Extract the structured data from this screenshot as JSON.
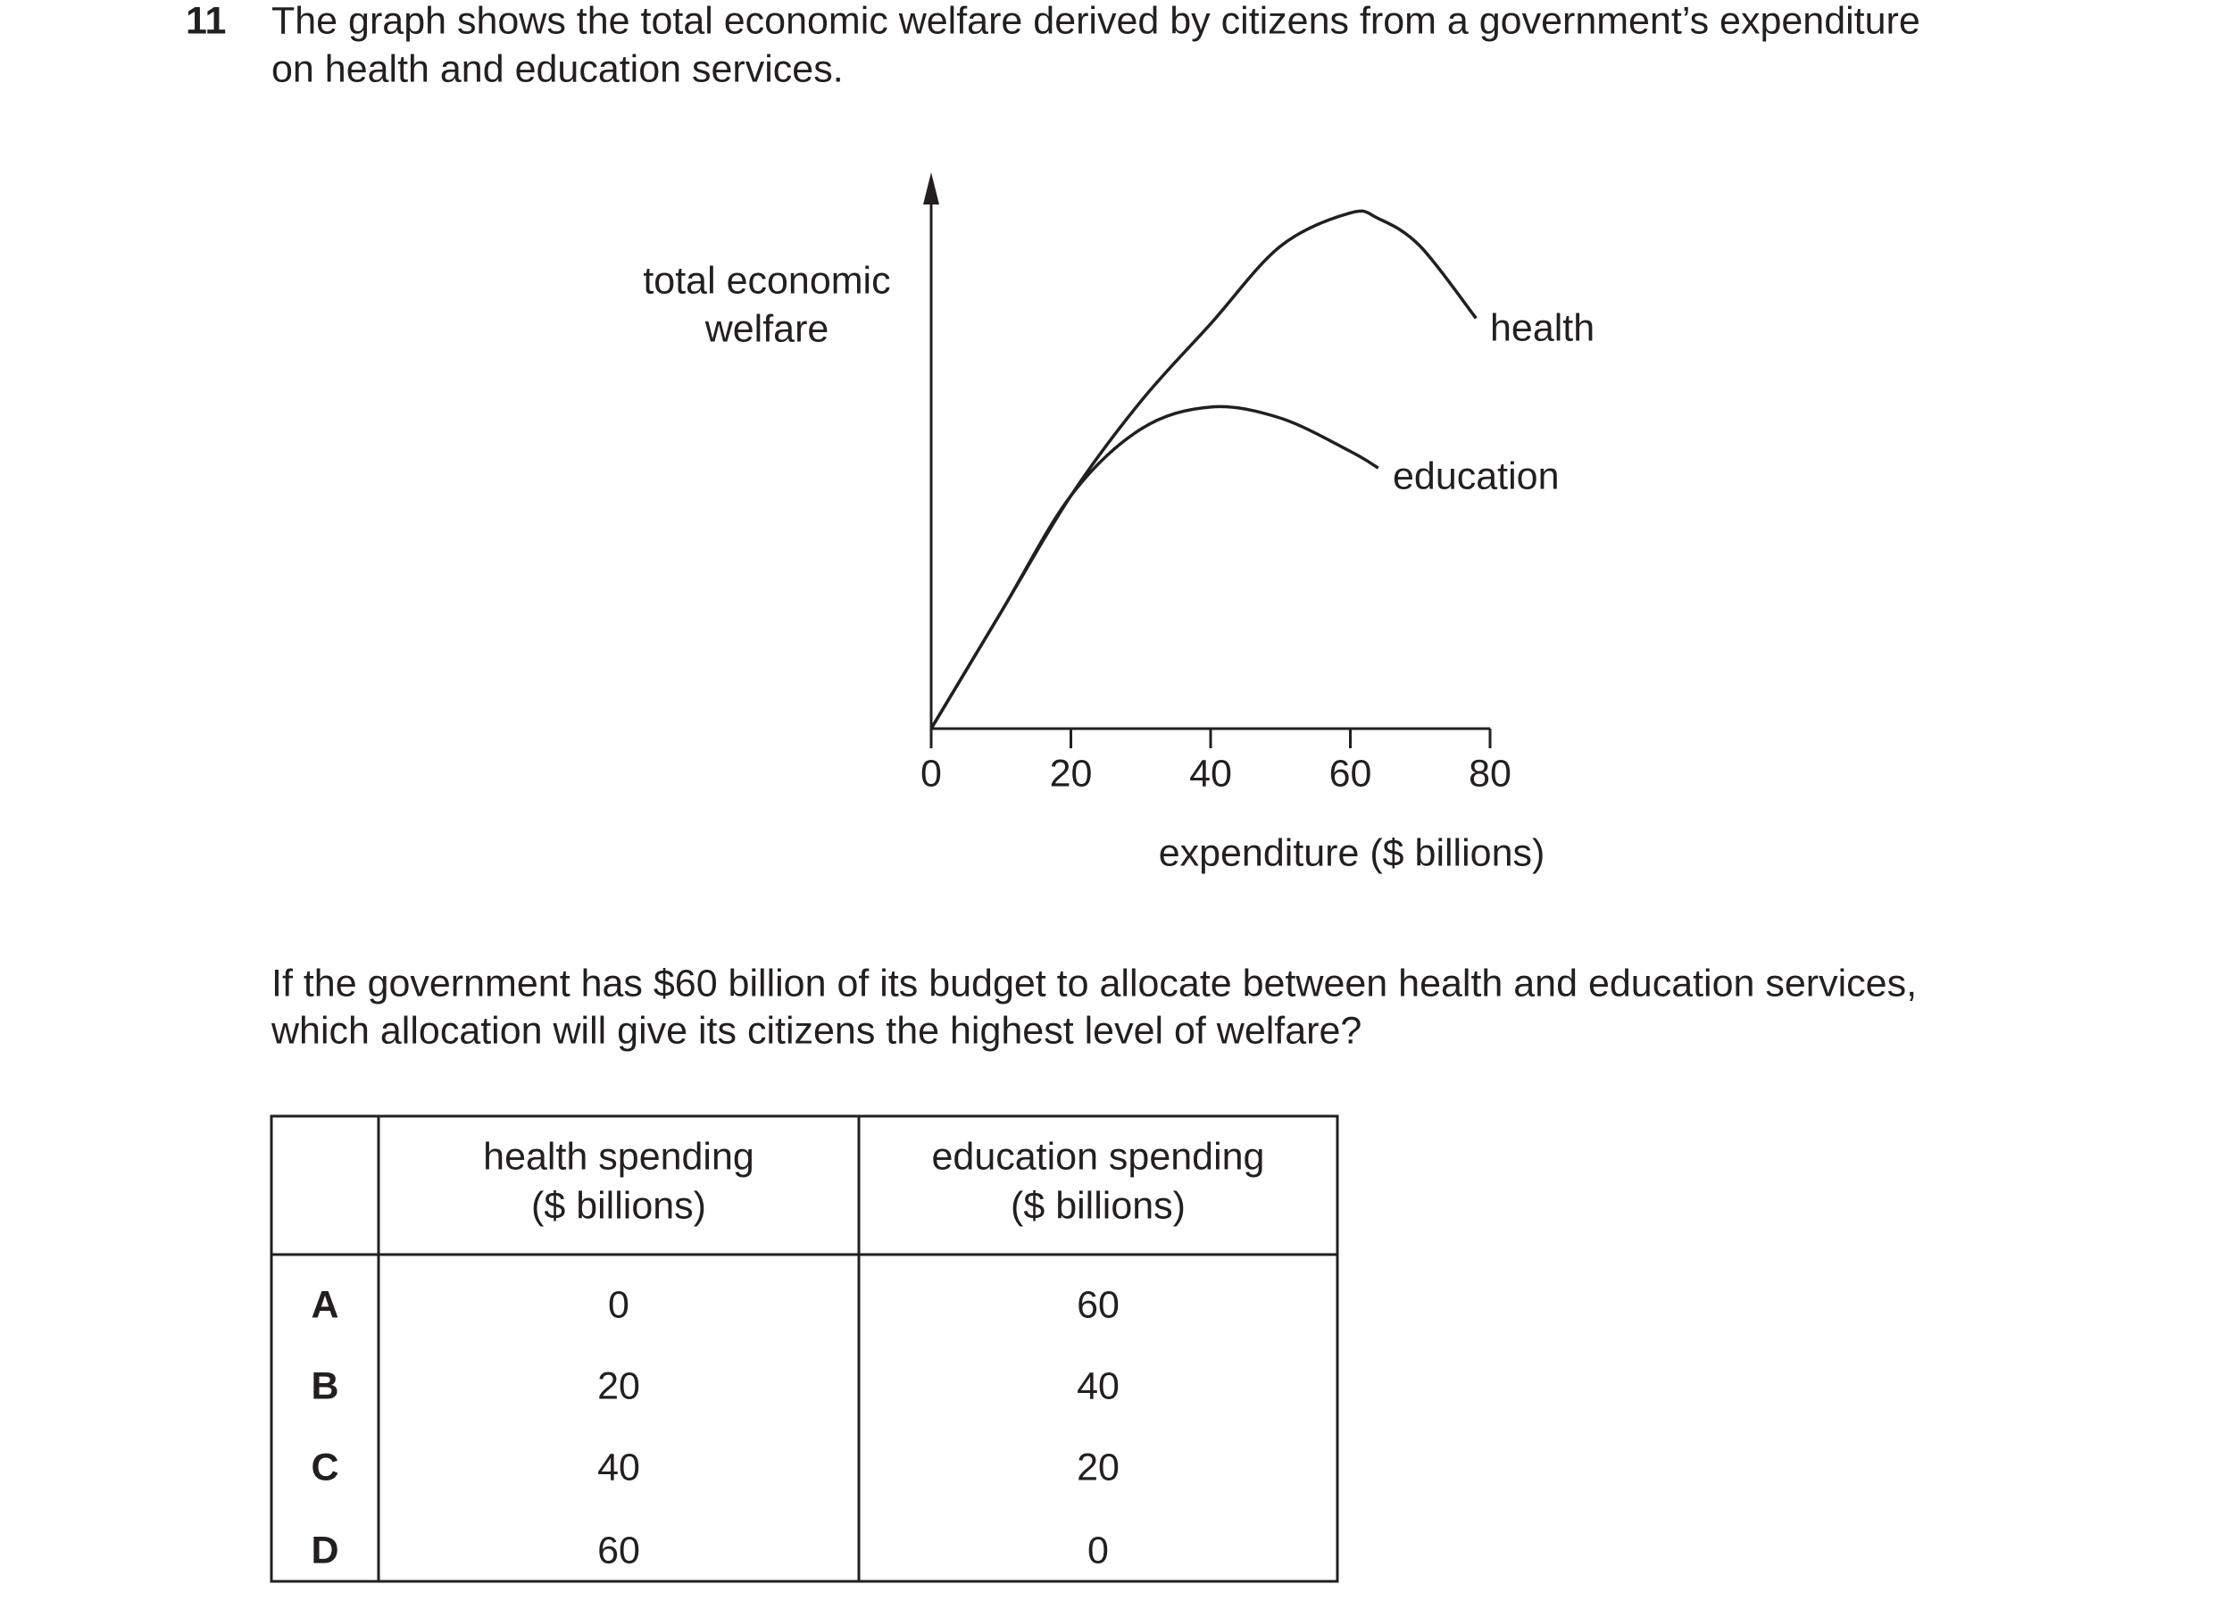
{
  "question": {
    "number": "11",
    "text": [
      "The graph shows the total economic welfare derived by citizens from a government’s expenditure",
      "on health and education services."
    ]
  },
  "chart_data": {
    "type": "line",
    "y_label": [
      "total economic",
      "welfare"
    ],
    "x_label": "expenditure ($ billions)",
    "x": [
      0,
      10,
      20,
      30,
      40,
      50,
      60,
      64,
      70,
      78
    ],
    "xlim": [
      0,
      80
    ],
    "xticks": [
      0,
      20,
      40,
      60,
      80
    ],
    "ylim": [
      0,
      100
    ],
    "series": [
      {
        "name": "health",
        "color": "#231f20",
        "values": [
          0,
          21,
          42,
          59,
          73,
          87,
          93,
          92,
          87,
          74
        ]
      },
      {
        "name": "education",
        "color": "#231f20",
        "values": [
          0,
          21,
          42,
          54,
          58,
          56,
          50,
          47,
          null,
          null
        ]
      }
    ]
  },
  "prompt": [
    "If the government has $60 billion of its budget to allocate between health and education services,",
    "which allocation will give its citizens the highest level of welfare?"
  ],
  "table": {
    "header": [
      [
        "health spending",
        "($ billions)"
      ],
      [
        "education spending",
        "($ billions)"
      ]
    ],
    "rows": [
      [
        "A",
        0,
        60
      ],
      [
        "B",
        20,
        40
      ],
      [
        "C",
        40,
        20
      ],
      [
        "D",
        60,
        0
      ]
    ]
  }
}
